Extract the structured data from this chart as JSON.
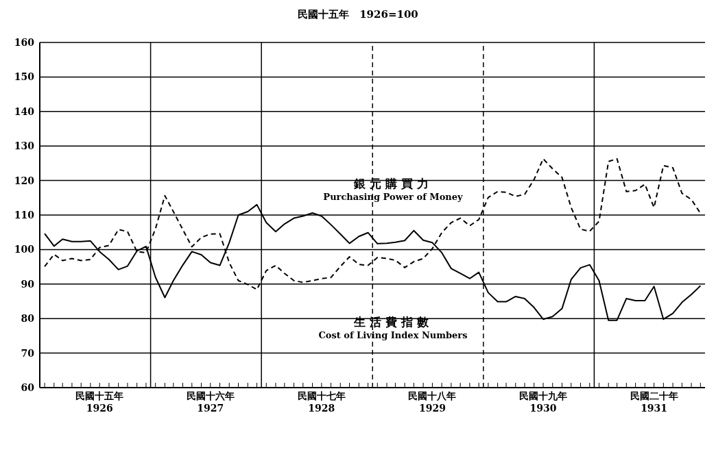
{
  "chart_data": {
    "type": "line",
    "subtitle": "民國十五年　1926=100",
    "x": [
      "1926-01",
      "1926-02",
      "1926-03",
      "1926-04",
      "1926-05",
      "1926-06",
      "1926-07",
      "1926-08",
      "1926-09",
      "1926-10",
      "1926-11",
      "1926-12",
      "1927-01",
      "1927-02",
      "1927-03",
      "1927-04",
      "1927-05",
      "1927-06",
      "1927-07",
      "1927-08",
      "1927-09",
      "1927-10",
      "1927-11",
      "1927-12",
      "1928-01",
      "1928-02",
      "1928-03",
      "1928-04",
      "1928-05",
      "1928-06",
      "1928-07",
      "1928-08",
      "1928-09",
      "1928-10",
      "1928-11",
      "1928-12",
      "1929-01",
      "1929-02",
      "1929-03",
      "1929-04",
      "1929-05",
      "1929-06",
      "1929-07",
      "1929-08",
      "1929-09",
      "1929-10",
      "1929-11",
      "1929-12",
      "1930-01",
      "1930-02",
      "1930-03",
      "1930-04",
      "1930-05",
      "1930-06",
      "1930-07",
      "1930-08",
      "1930-09",
      "1930-10",
      "1930-11",
      "1930-12",
      "1931-01",
      "1931-02",
      "1931-03",
      "1931-04",
      "1931-05",
      "1931-06",
      "1931-07",
      "1931-08",
      "1931-09",
      "1931-10",
      "1931-11",
      "1931-12"
    ],
    "series": [
      {
        "name": "銀元購買力\nPurchasing Power of Money",
        "color": "#000000",
        "line_style": "dashed",
        "values": [
          95.1,
          98.6,
          96.8,
          97.4,
          96.8,
          97.1,
          100.6,
          101.2,
          105.8,
          105.2,
          99.4,
          99.1,
          106,
          115.6,
          111,
          105.8,
          100.8,
          103.5,
          104.5,
          104.6,
          96.2,
          91,
          89.9,
          88.4,
          93.9,
          95.4,
          93.1,
          91,
          90.5,
          91,
          91.6,
          91.9,
          95.1,
          97.9,
          95.7,
          95.4,
          97.7,
          97.4,
          96.9,
          94.8,
          96.5,
          97.4,
          100.3,
          104.9,
          107.8,
          109.1,
          106.9,
          108.7,
          115.1,
          116.8,
          116.6,
          115.4,
          116,
          120.3,
          126.3,
          123.4,
          120.9,
          112.2,
          105.9,
          105.3,
          108.2,
          125.5,
          126.3,
          116.8,
          117.1,
          118.9,
          112.2,
          124.3,
          123.7,
          116.3,
          114.5,
          110.5
        ]
      },
      {
        "name": "生活費指數\nCost of Living Index Numbers",
        "color": "#000000",
        "line_style": "solid",
        "values": [
          104.6,
          101,
          103,
          102.3,
          102.3,
          102.5,
          99.4,
          97.1,
          94.2,
          95.2,
          99.6,
          100.9,
          92,
          86.1,
          91,
          95.5,
          99.4,
          98.5,
          96.2,
          95.4,
          102,
          110,
          111,
          113,
          107.8,
          105.2,
          107.4,
          109.1,
          109.7,
          110.6,
          109.7,
          107.2,
          104.5,
          101.8,
          103.8,
          104.9,
          101.7,
          101.8,
          102.1,
          102.6,
          105.5,
          102.7,
          102,
          99.1,
          94.5,
          93.1,
          91.6,
          93.4,
          87.5,
          84.9,
          84.9,
          86.4,
          85.8,
          83.2,
          79.8,
          80.6,
          82.9,
          91.3,
          94.7,
          95.6,
          91,
          79.5,
          79.5,
          85.8,
          85.2,
          85.2,
          89.3,
          79.8,
          81.5,
          84.7,
          87,
          89.5
        ]
      }
    ],
    "xlim": [
      "1925-12-16",
      "1931-12-16"
    ],
    "xticks": [
      {
        "value": "1926-01",
        "label": null
      },
      {
        "value": "1926-02",
        "label": null
      },
      {
        "value": "1926-03",
        "label": null
      },
      {
        "value": "1926-04",
        "label": null
      },
      {
        "value": "1926-05",
        "label": null
      },
      {
        "value": "1926-06",
        "label": null
      },
      {
        "value": "1926-07",
        "label": "民國十五年\n1926"
      },
      {
        "value": "1926-08",
        "label": null
      },
      {
        "value": "1926-09",
        "label": null
      },
      {
        "value": "1926-10",
        "label": null
      },
      {
        "value": "1926-11",
        "label": null
      },
      {
        "value": "1926-12",
        "label": null
      },
      {
        "value": "1927-01",
        "label": null
      },
      {
        "value": "1927-02",
        "label": null
      },
      {
        "value": "1927-03",
        "label": null
      },
      {
        "value": "1927-04",
        "label": null
      },
      {
        "value": "1927-05",
        "label": null
      },
      {
        "value": "1927-06",
        "label": null
      },
      {
        "value": "1927-07",
        "label": "民國十六年\n1927"
      },
      {
        "value": "1927-08",
        "label": null
      },
      {
        "value": "1927-09",
        "label": null
      },
      {
        "value": "1927-10",
        "label": null
      },
      {
        "value": "1927-11",
        "label": null
      },
      {
        "value": "1927-12",
        "label": null
      },
      {
        "value": "1928-01",
        "label": null
      },
      {
        "value": "1928-02",
        "label": null
      },
      {
        "value": "1928-03",
        "label": null
      },
      {
        "value": "1928-04",
        "label": null
      },
      {
        "value": "1928-05",
        "label": null
      },
      {
        "value": "1928-06",
        "label": null
      },
      {
        "value": "1928-07",
        "label": "民國十七年\n1928"
      },
      {
        "value": "1928-08",
        "label": null
      },
      {
        "value": "1928-09",
        "label": null
      },
      {
        "value": "1928-10",
        "label": null
      },
      {
        "value": "1928-11",
        "label": null
      },
      {
        "value": "1928-12",
        "label": null
      },
      {
        "value": "1929-01",
        "label": null
      },
      {
        "value": "1929-02",
        "label": null
      },
      {
        "value": "1929-03",
        "label": null
      },
      {
        "value": "1929-04",
        "label": null
      },
      {
        "value": "1929-05",
        "label": null
      },
      {
        "value": "1929-06",
        "label": null
      },
      {
        "value": "1929-07",
        "label": "民國十八年\n1929"
      },
      {
        "value": "1929-08",
        "label": null
      },
      {
        "value": "1929-09",
        "label": null
      },
      {
        "value": "1929-10",
        "label": null
      },
      {
        "value": "1929-11",
        "label": null
      },
      {
        "value": "1929-12",
        "label": null
      },
      {
        "value": "1930-01",
        "label": null
      },
      {
        "value": "1930-02",
        "label": null
      },
      {
        "value": "1930-03",
        "label": null
      },
      {
        "value": "1930-04",
        "label": null
      },
      {
        "value": "1930-05",
        "label": null
      },
      {
        "value": "1930-06",
        "label": null
      },
      {
        "value": "1930-07",
        "label": "民國十九年\n1930"
      },
      {
        "value": "1930-08",
        "label": null
      },
      {
        "value": "1930-09",
        "label": null
      },
      {
        "value": "1930-10",
        "label": null
      },
      {
        "value": "1930-11",
        "label": null
      },
      {
        "value": "1930-12",
        "label": null
      },
      {
        "value": "1931-01",
        "label": null
      },
      {
        "value": "1931-02",
        "label": null
      },
      {
        "value": "1931-03",
        "label": null
      },
      {
        "value": "1931-04",
        "label": null
      },
      {
        "value": "1931-05",
        "label": null
      },
      {
        "value": "1931-06",
        "label": null
      },
      {
        "value": "1931-07",
        "label": "民國二十年\n1931"
      },
      {
        "value": "1931-08",
        "label": null
      },
      {
        "value": "1931-09",
        "label": null
      },
      {
        "value": "1931-10",
        "label": null
      },
      {
        "value": "1931-11",
        "label": null
      },
      {
        "value": "1931-12",
        "label": null
      }
    ],
    "ylim": [
      60,
      160
    ],
    "yticks": [
      60,
      70,
      80,
      90,
      100,
      110,
      120,
      130,
      140,
      150,
      160
    ],
    "grid": "y",
    "marker": "none",
    "ref_lines": [
      {
        "axis": "x",
        "value": "1926-12-16",
        "line_style": "solid"
      },
      {
        "axis": "x",
        "value": "1927-12-16",
        "line_style": "solid"
      },
      {
        "axis": "x",
        "value": "1928-12-16",
        "line_style": "dashed"
      },
      {
        "axis": "x",
        "value": "1929-12-16",
        "line_style": "dashed"
      },
      {
        "axis": "x",
        "value": "1930-12-16",
        "line_style": "solid"
      }
    ]
  }
}
